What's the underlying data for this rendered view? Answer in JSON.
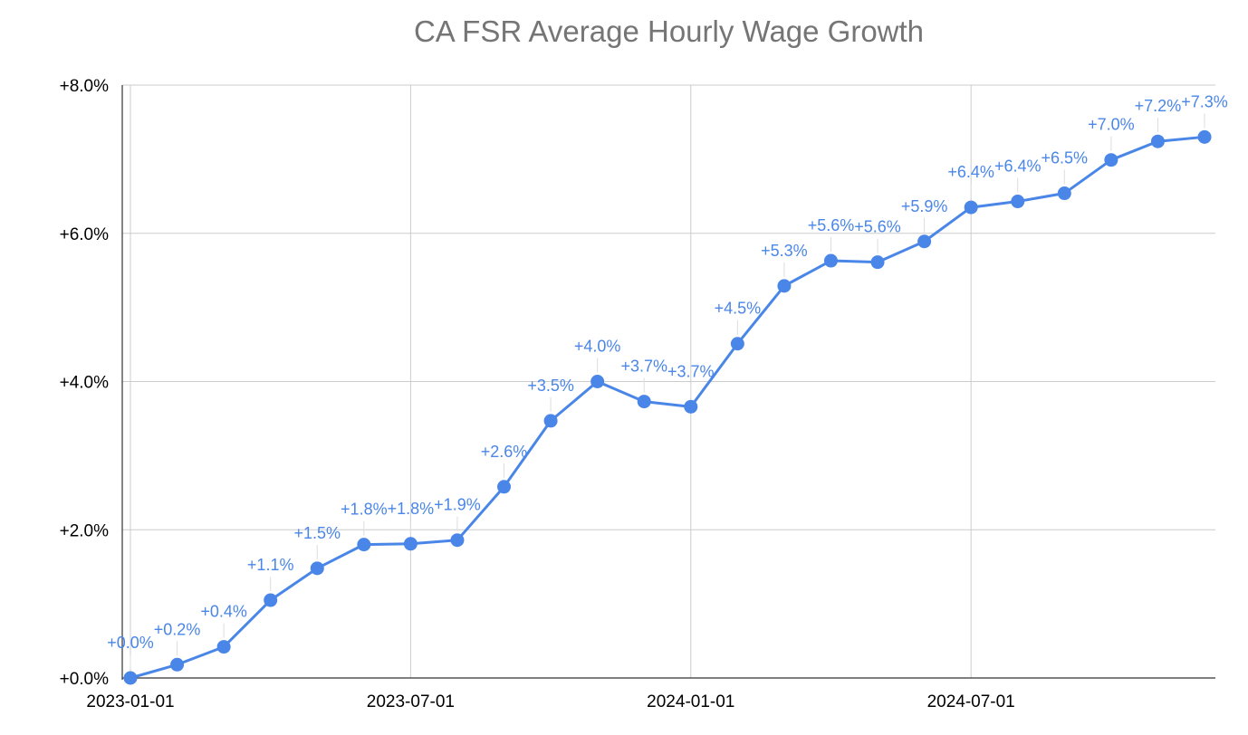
{
  "chart_data": {
    "type": "line",
    "title": "CA FSR Average Hourly Wage Growth",
    "xlabel": "",
    "ylabel": "",
    "x": [
      "2023-01-01",
      "2023-02-01",
      "2023-03-01",
      "2023-04-01",
      "2023-05-01",
      "2023-06-01",
      "2023-07-01",
      "2023-08-01",
      "2023-09-01",
      "2023-10-01",
      "2023-11-01",
      "2023-12-01",
      "2024-01-01",
      "2024-02-01",
      "2024-03-01",
      "2024-04-01",
      "2024-05-01",
      "2024-06-01",
      "2024-07-01",
      "2024-08-01",
      "2024-09-01",
      "2024-10-01",
      "2024-11-01",
      "2024-12-01"
    ],
    "x_tick_labels": [
      "2023-01-01",
      "2023-07-01",
      "2024-01-01",
      "2024-07-01"
    ],
    "series": [
      {
        "values": [
          0.0,
          0.18,
          0.42,
          1.05,
          1.48,
          1.8,
          1.81,
          1.86,
          2.58,
          3.47,
          4.0,
          3.73,
          3.66,
          4.51,
          5.29,
          5.63,
          5.61,
          5.89,
          6.35,
          6.43,
          6.54,
          6.99,
          7.24,
          7.3
        ],
        "labels": [
          "+0.0%",
          "+0.2%",
          "+0.4%",
          "+1.1%",
          "+1.5%",
          "+1.8%",
          "+1.8%",
          "+1.9%",
          "+2.6%",
          "+3.5%",
          "+4.0%",
          "+3.7%",
          "+3.7%",
          "+4.5%",
          "+5.3%",
          "+5.6%",
          "+5.6%",
          "+5.9%",
          "+6.4%",
          "+6.4%",
          "+6.5%",
          "+7.0%",
          "+7.2%",
          "+7.3%"
        ],
        "color": "#4a86e8"
      }
    ],
    "y_ticks": [
      0,
      2,
      4,
      6,
      8
    ],
    "y_tick_labels": [
      "+0.0%",
      "+2.0%",
      "+4.0%",
      "+6.0%",
      "+8.0%"
    ],
    "ylim": [
      0,
      8
    ],
    "grid": true,
    "legend": "none"
  }
}
